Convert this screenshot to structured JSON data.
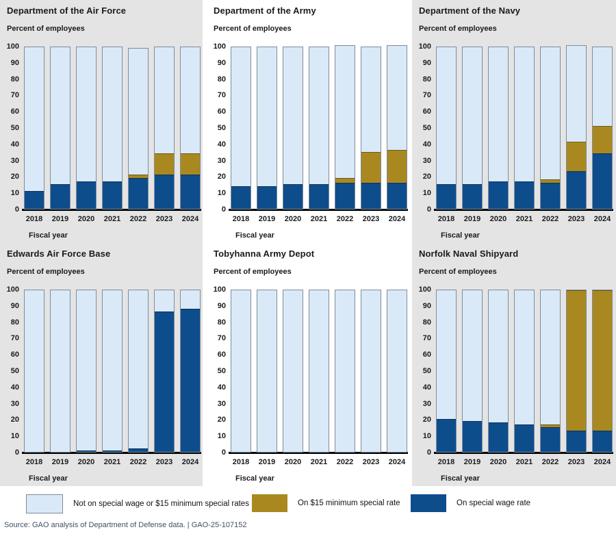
{
  "colors": {
    "not_on_rate": "#dae9f8",
    "min15_rate": "#a9891f",
    "special_rate": "#0e4d8c",
    "bar_border": "#7e8b99",
    "panel_background": "#e4e4e4",
    "axis": "#000000",
    "source_text": "#3f4f63"
  },
  "chart_data": {
    "type": "bar",
    "stacked": true,
    "grid": false,
    "legend_position": "bottom",
    "categories": [
      "2018",
      "2019",
      "2020",
      "2021",
      "2022",
      "2023",
      "2024"
    ],
    "xlabel": "Fiscal year",
    "ylabel": "Percent of employees",
    "ylim": [
      0,
      100
    ],
    "y_ticks": [
      0,
      10,
      20,
      30,
      40,
      50,
      60,
      70,
      80,
      90,
      100
    ],
    "panels": [
      {
        "title": "Department of the Air Force",
        "series": [
          {
            "name": "On special wage rate",
            "values": [
              11,
              15,
              17,
              17,
              19,
              21,
              21
            ]
          },
          {
            "name": "On $15 minimum special rate",
            "values": [
              0,
              0,
              0,
              0,
              2,
              13,
              13
            ]
          },
          {
            "name": "Not on special wage or $15 minimum special rates",
            "values": [
              89,
              85,
              83,
              83,
              78,
              66,
              66
            ]
          }
        ]
      },
      {
        "title": "Department of the Army",
        "series": [
          {
            "name": "On special wage rate",
            "values": [
              14,
              14,
              15,
              15,
              16,
              16,
              16
            ]
          },
          {
            "name": "On $15 minimum special rate",
            "values": [
              0,
              0,
              0,
              0,
              3,
              19,
              20
            ]
          },
          {
            "name": "Not on special wage or $15 minimum special rates",
            "values": [
              86,
              86,
              85,
              85,
              82,
              65,
              65
            ]
          }
        ]
      },
      {
        "title": "Department of the Navy",
        "series": [
          {
            "name": "On special wage rate",
            "values": [
              15,
              15,
              17,
              17,
              16,
              23,
              34
            ]
          },
          {
            "name": "On $15 minimum special rate",
            "values": [
              0,
              0,
              0,
              0,
              2,
              18,
              17
            ]
          },
          {
            "name": "Not on special wage or $15 minimum special rates",
            "values": [
              85,
              85,
              83,
              83,
              82,
              60,
              49
            ]
          }
        ]
      },
      {
        "title": "Edwards Air Force Base",
        "series": [
          {
            "name": "On special wage rate",
            "values": [
              0,
              0,
              1,
              1,
              2,
              86,
              88
            ]
          },
          {
            "name": "On $15 minimum special rate",
            "values": [
              0,
              0,
              0,
              0,
              0,
              0,
              0
            ]
          },
          {
            "name": "Not on special wage or $15 minimum special rates",
            "values": [
              100,
              100,
              99,
              99,
              98,
              14,
              12
            ]
          }
        ]
      },
      {
        "title": "Tobyhanna Army Depot",
        "series": [
          {
            "name": "On special wage rate",
            "values": [
              0,
              0,
              0,
              0,
              0,
              0,
              0
            ]
          },
          {
            "name": "On $15 minimum special rate",
            "values": [
              0,
              0,
              0,
              0,
              0,
              0,
              0
            ]
          },
          {
            "name": "Not on special wage or $15 minimum special rates",
            "values": [
              100,
              100,
              100,
              100,
              100,
              100,
              100
            ]
          }
        ]
      },
      {
        "title": "Norfolk Naval Shipyard",
        "series": [
          {
            "name": "On special wage rate",
            "values": [
              20,
              19,
              18,
              17,
              15,
              13,
              13
            ]
          },
          {
            "name": "On $15 minimum special rate",
            "values": [
              0,
              0,
              0,
              0,
              2,
              87,
              87
            ]
          },
          {
            "name": "Not on special wage or $15 minimum special rates",
            "values": [
              80,
              81,
              82,
              83,
              83,
              0,
              0
            ]
          }
        ]
      }
    ]
  },
  "legend": {
    "items": [
      {
        "label": "Not on special wage or $15 minimum special rates",
        "color": "#dae9f8"
      },
      {
        "label": "On $15 minimum special rate",
        "color": "#a9891f"
      },
      {
        "label": "On special wage rate",
        "color": "#0e4d8c"
      }
    ]
  },
  "source": "Source: GAO analysis of Department of Defense data.  |  GAO-25-107152"
}
